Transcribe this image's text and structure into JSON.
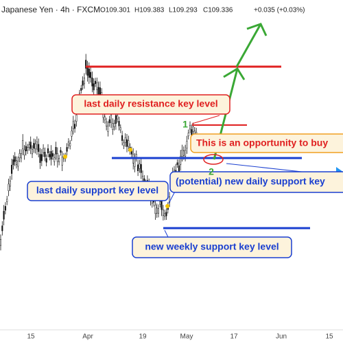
{
  "header": {
    "title": "Japanese Yen · 4h · FXCM",
    "ohlc": [
      "O109.301",
      "H109.383",
      "L109.293",
      "C109.336"
    ],
    "change": "+0.035 (+0.03%)"
  },
  "annotations": {
    "resistance": "last daily resistance key level",
    "opportunity": "This is an opportunity to buy",
    "daily_support": "last daily support key level",
    "potential_support": "(potential) new daily support key",
    "weekly_support": "new weekly support key level",
    "point_1": "1",
    "point_2": "2"
  },
  "x_axis": {
    "labels": [
      "15",
      "Apr",
      "19",
      "May",
      "17",
      "Jun",
      "15"
    ]
  }
}
